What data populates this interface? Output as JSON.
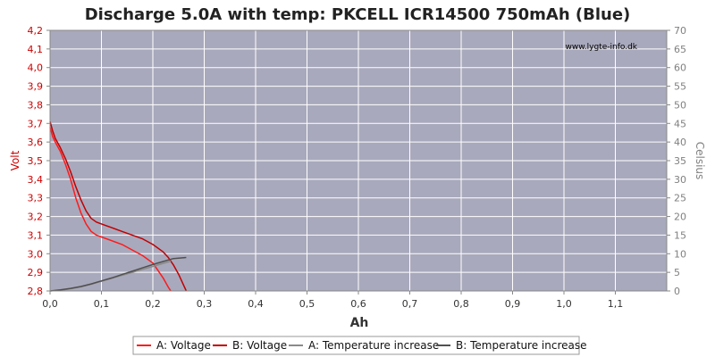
{
  "chart_data": {
    "type": "line",
    "title": "Discharge 5.0A with temp: PKCELL ICR14500 750mAh (Blue)",
    "watermark": "www.lygte-info.dk",
    "xlabel": "Ah",
    "ylabel": "Volt",
    "y2label": "Celsius",
    "xlim": [
      0,
      1.2
    ],
    "ylim": [
      2.8,
      4.2
    ],
    "y2lim": [
      0,
      70
    ],
    "xticks": [
      "0,0",
      "0,1",
      "0,2",
      "0,3",
      "0,4",
      "0,5",
      "0,6",
      "0,7",
      "0,8",
      "0,9",
      "1,0",
      "1,1"
    ],
    "yticks": [
      "2,8",
      "2,9",
      "3,0",
      "3,1",
      "3,2",
      "3,3",
      "3,4",
      "3,5",
      "3,6",
      "3,7",
      "3,8",
      "3,9",
      "4,0",
      "4,1",
      "4,2"
    ],
    "y2ticks": [
      "0",
      "5",
      "10",
      "15",
      "20",
      "25",
      "30",
      "35",
      "40",
      "45",
      "50",
      "55",
      "60",
      "65",
      "70"
    ],
    "grid": true,
    "legend_position": "bottom",
    "colors": {
      "plot_bg": "#a9a9bd",
      "grid": "#ffffff",
      "voltage_a": "#ff1a1a",
      "voltage_b": "#c00000",
      "temp_a": "#8a8a8a",
      "temp_b": "#505050",
      "left_axis_text": "#cc0000",
      "right_axis_text": "#808080"
    },
    "series": [
      {
        "name": "A: Voltage",
        "axis": "left",
        "color": "#ff1a1a",
        "x": [
          0,
          0.005,
          0.01,
          0.02,
          0.03,
          0.04,
          0.05,
          0.06,
          0.07,
          0.08,
          0.09,
          0.1,
          0.12,
          0.14,
          0.16,
          0.18,
          0.2,
          0.21,
          0.22,
          0.23,
          0.235
        ],
        "y": [
          3.68,
          3.63,
          3.6,
          3.55,
          3.48,
          3.4,
          3.3,
          3.22,
          3.16,
          3.12,
          3.1,
          3.09,
          3.07,
          3.05,
          3.02,
          2.99,
          2.95,
          2.91,
          2.87,
          2.82,
          2.8
        ]
      },
      {
        "name": "B: Voltage",
        "axis": "left",
        "color": "#c00000",
        "x": [
          0,
          0.005,
          0.01,
          0.02,
          0.03,
          0.04,
          0.05,
          0.06,
          0.07,
          0.08,
          0.09,
          0.1,
          0.12,
          0.14,
          0.16,
          0.18,
          0.2,
          0.22,
          0.23,
          0.24,
          0.25,
          0.26,
          0.265
        ],
        "y": [
          3.71,
          3.66,
          3.62,
          3.57,
          3.51,
          3.44,
          3.36,
          3.29,
          3.23,
          3.19,
          3.17,
          3.16,
          3.14,
          3.12,
          3.1,
          3.08,
          3.05,
          3.01,
          2.98,
          2.94,
          2.89,
          2.83,
          2.8
        ]
      },
      {
        "name": "A: Temperature increase",
        "axis": "right",
        "color": "#8a8a8a",
        "x": [
          0,
          0.02,
          0.04,
          0.06,
          0.08,
          0.1,
          0.12,
          0.14,
          0.16,
          0.18,
          0.2,
          0.22,
          0.235
        ],
        "y": [
          0,
          0.2,
          0.6,
          1.1,
          1.8,
          2.6,
          3.4,
          4.2,
          5.0,
          5.8,
          6.6,
          7.4,
          8.0
        ]
      },
      {
        "name": "B: Temperature increase",
        "axis": "right",
        "color": "#505050",
        "x": [
          0,
          0.02,
          0.04,
          0.06,
          0.08,
          0.1,
          0.12,
          0.14,
          0.16,
          0.18,
          0.2,
          0.22,
          0.24,
          0.265
        ],
        "y": [
          0,
          0.3,
          0.7,
          1.2,
          1.9,
          2.7,
          3.5,
          4.4,
          5.3,
          6.2,
          7.1,
          7.9,
          8.7,
          9.0
        ]
      }
    ]
  }
}
